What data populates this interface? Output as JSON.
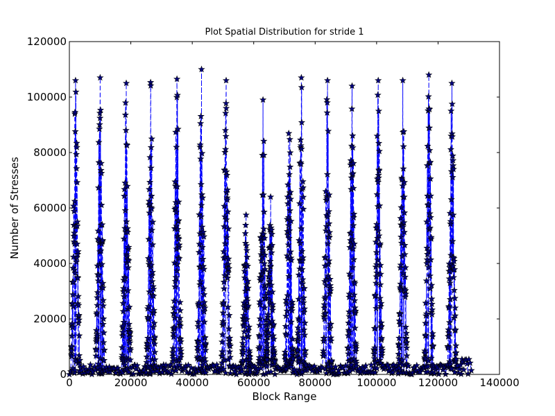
{
  "chart_data": {
    "type": "line",
    "title": "Plot Spatial Distribution for stride 1",
    "xlabel": "Block Range",
    "ylabel": "Number of Stresses",
    "xlim": [
      0,
      140000
    ],
    "ylim": [
      0,
      120000
    ],
    "x_ticks": [
      0,
      20000,
      40000,
      60000,
      80000,
      100000,
      120000,
      140000
    ],
    "y_ticks": [
      0,
      20000,
      40000,
      60000,
      80000,
      100000,
      120000
    ],
    "x_tick_labels": [
      "0",
      "20000",
      "40000",
      "60000",
      "80000",
      "100000",
      "120000",
      "140000"
    ],
    "y_tick_labels": [
      "0",
      "20000",
      "40000",
      "60000",
      "80000",
      "100000",
      "120000"
    ],
    "grid": false,
    "legend": "none",
    "series_style": {
      "line_color": "#0000ff",
      "line_style": "dashed",
      "marker": "star",
      "marker_fill": "#000080",
      "marker_edge": "#000000"
    },
    "data_extent": {
      "x_min": 0,
      "x_max": 131000
    },
    "peaks": [
      {
        "x": 2000,
        "y": 106000
      },
      {
        "x": 10000,
        "y": 107000
      },
      {
        "x": 18500,
        "y": 105000
      },
      {
        "x": 26500,
        "y": 108000
      },
      {
        "x": 35000,
        "y": 106500
      },
      {
        "x": 43000,
        "y": 110000
      },
      {
        "x": 51000,
        "y": 106000
      },
      {
        "x": 57500,
        "y": 57500
      },
      {
        "x": 63000,
        "y": 99000
      },
      {
        "x": 65500,
        "y": 64000
      },
      {
        "x": 71500,
        "y": 99000
      },
      {
        "x": 75500,
        "y": 107000
      },
      {
        "x": 84000,
        "y": 106000
      },
      {
        "x": 92000,
        "y": 104000
      },
      {
        "x": 100500,
        "y": 106000
      },
      {
        "x": 108500,
        "y": 106000
      },
      {
        "x": 117000,
        "y": 108000
      },
      {
        "x": 124500,
        "y": 105000
      }
    ]
  },
  "colors": {
    "background": "#ffffff",
    "axes": "#000000"
  }
}
